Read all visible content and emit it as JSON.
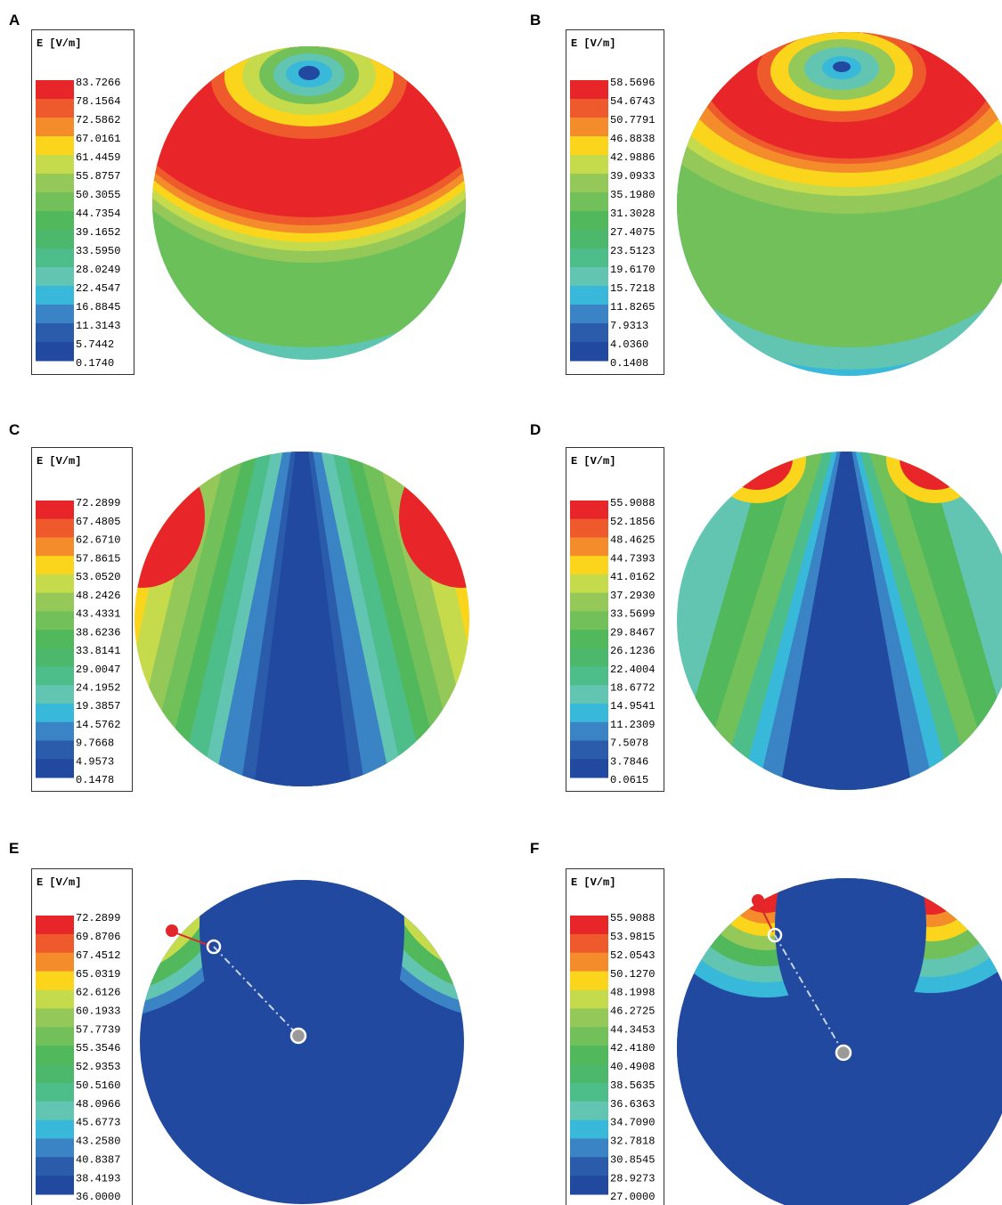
{
  "colors": [
    "#e8262a",
    "#ee5a2c",
    "#f48c2c",
    "#fad51c",
    "#c6db4c",
    "#94c95a",
    "#72c05a",
    "#52b85c",
    "#4cb86c",
    "#4dbd8a",
    "#62c5b2",
    "#38b9da",
    "#3a84c6",
    "#2a5cab",
    "#2149a0"
  ],
  "panels": [
    {
      "label": "A",
      "legend_title": "E [V/m]",
      "legend_labels": [
        "83.7266",
        "78.1564",
        "72.5862",
        "67.0161",
        "61.4459",
        "55.8757",
        "50.3055",
        "44.7354",
        "39.1652",
        "33.5950",
        "28.0249",
        "22.4547",
        "16.8845",
        "11.3143",
        "5.7442",
        "0.1740"
      ]
    },
    {
      "label": "B",
      "legend_title": "E [V/m]",
      "legend_labels": [
        "58.5696",
        "54.6743",
        "50.7791",
        "46.8838",
        "42.9886",
        "39.0933",
        "35.1980",
        "31.3028",
        "27.4075",
        "23.5123",
        "19.6170",
        "15.7218",
        "11.8265",
        "7.9313",
        "4.0360",
        "0.1408"
      ]
    },
    {
      "label": "C",
      "legend_title": "E [V/m]",
      "legend_labels": [
        "72.2899",
        "67.4805",
        "62.6710",
        "57.8615",
        "53.0520",
        "48.2426",
        "43.4331",
        "38.6236",
        "33.8141",
        "29.0047",
        "24.1952",
        "19.3857",
        "14.5762",
        "9.7668",
        "4.9573",
        "0.1478"
      ]
    },
    {
      "label": "D",
      "legend_title": "E [V/m]",
      "legend_labels": [
        "55.9088",
        "52.1856",
        "48.4625",
        "44.7393",
        "41.0162",
        "37.2930",
        "33.5699",
        "29.8467",
        "26.1236",
        "22.4004",
        "18.6772",
        "14.9541",
        "11.2309",
        "7.5078",
        "3.7846",
        "0.0615"
      ]
    },
    {
      "label": "E",
      "legend_title": "E [V/m]",
      "legend_labels": [
        "72.2899",
        "69.8706",
        "67.4512",
        "65.0319",
        "62.6126",
        "60.1933",
        "57.7739",
        "55.3546",
        "52.9353",
        "50.5160",
        "48.0966",
        "45.6773",
        "43.2580",
        "40.8387",
        "38.4193",
        "36.0000"
      ]
    },
    {
      "label": "F",
      "legend_title": "E [V/m]",
      "legend_labels": [
        "55.9088",
        "53.9815",
        "52.0543",
        "50.1270",
        "48.1998",
        "46.2725",
        "44.3453",
        "42.4180",
        "40.4908",
        "38.5635",
        "36.6363",
        "34.7090",
        "32.7818",
        "30.8545",
        "28.9273",
        "27.0000"
      ]
    }
  ]
}
